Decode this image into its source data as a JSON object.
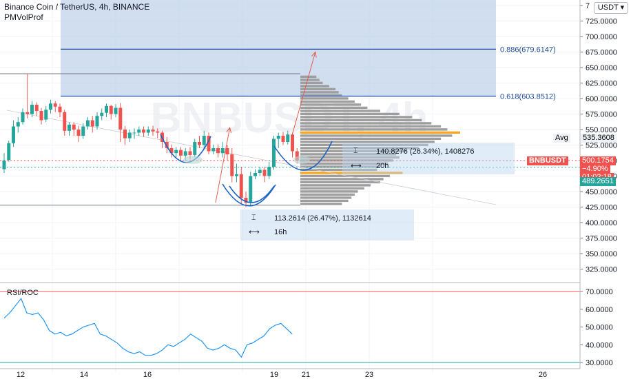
{
  "header": {
    "title": "Binance Coin / TetherUS, 4h, BINANCE",
    "indicator": "PMVolProf",
    "currency": "USDT",
    "watermark": "BNBUSDT, 4h"
  },
  "rsi_panel": {
    "label": "RSI/ROC"
  },
  "measure_boxes": [
    {
      "price_text": "140.8276 (26.34%), 1408276",
      "time_text": "20h"
    },
    {
      "price_text": "113.2614 (26.47%), 1132614",
      "time_text": "16h"
    }
  ],
  "price_tags": {
    "avg_label": "Avg",
    "avg_value": "535.3608",
    "symbol": "BNBUSDT",
    "last_price": "500.1754",
    "change": "−4.90%",
    "countdown": "01:02:18",
    "level": "489.2651"
  },
  "fib_levels": [
    {
      "label": "0.886(679.6147)",
      "value": 679.6147
    },
    {
      "label": "0.618(603.8512)",
      "value": 603.8512
    }
  ],
  "colors": {
    "up": "#26a69a",
    "down": "#ef5350",
    "fib": "#1e4a96",
    "zone": "#bcd0ea",
    "volume": "#9e9e9e",
    "poc": "#f5a623",
    "rsi": "#2196f3",
    "arrow": "#e35c4f",
    "curve": "#1e63c4"
  },
  "chart_data": [
    {
      "type": "candlestick",
      "title": "Binance Coin / TetherUS, 4h, BINANCE",
      "y_ticks": [
        "7",
        "725.0000",
        "700.0000",
        "675.0000",
        "650.0000",
        "625.0000",
        "600.0000",
        "575.0000",
        "550.0000",
        "525.0000",
        "500.0000",
        "475.0000",
        "450.0000",
        "425.0000",
        "400.0000",
        "375.0000",
        "350.0000",
        "325.0000"
      ],
      "x_ticks": [
        "12",
        "14",
        "16",
        "19",
        "21",
        "23",
        "26"
      ],
      "ylim": [
        310,
        750
      ],
      "candles": [
        [
          486,
          500,
          480,
          512
        ],
        [
          501,
          528,
          498,
          532
        ],
        [
          528,
          555,
          522,
          565
        ],
        [
          555,
          562,
          545,
          570
        ],
        [
          562,
          578,
          558,
          584
        ],
        [
          578,
          575,
          568,
          640
        ],
        [
          575,
          590,
          570,
          596
        ],
        [
          590,
          580,
          572,
          594
        ],
        [
          580,
          565,
          558,
          585
        ],
        [
          566,
          582,
          562,
          588
        ],
        [
          582,
          592,
          576,
          598
        ],
        [
          592,
          587,
          578,
          596
        ],
        [
          587,
          578,
          570,
          592
        ],
        [
          578,
          548,
          540,
          582
        ],
        [
          548,
          558,
          540,
          562
        ],
        [
          558,
          550,
          540,
          562
        ],
        [
          550,
          540,
          530,
          556
        ],
        [
          540,
          555,
          535,
          560
        ],
        [
          555,
          565,
          550,
          570
        ],
        [
          565,
          555,
          545,
          572
        ],
        [
          555,
          572,
          550,
          578
        ],
        [
          572,
          577,
          565,
          584
        ],
        [
          577,
          588,
          570,
          592
        ],
        [
          588,
          575,
          566,
          590
        ],
        [
          575,
          585,
          570,
          591
        ],
        [
          585,
          550,
          530,
          593
        ],
        [
          550,
          536,
          525,
          556
        ],
        [
          536,
          545,
          530,
          550
        ],
        [
          545,
          545,
          535,
          552
        ],
        [
          545,
          550,
          540,
          555
        ],
        [
          550,
          545,
          538,
          555
        ],
        [
          545,
          550,
          540,
          555
        ],
        [
          550,
          547,
          540,
          556
        ],
        [
          547,
          545,
          536,
          552
        ],
        [
          545,
          530,
          520,
          548
        ],
        [
          530,
          520,
          512,
          538
        ],
        [
          520,
          512,
          505,
          526
        ],
        [
          512,
          517,
          505,
          522
        ],
        [
          517,
          508,
          500,
          522
        ],
        [
          508,
          515,
          500,
          520
        ],
        [
          515,
          509,
          502,
          522
        ],
        [
          509,
          530,
          505,
          535
        ],
        [
          530,
          525,
          520,
          540
        ],
        [
          525,
          540,
          520,
          548
        ],
        [
          540,
          515,
          510,
          545
        ],
        [
          515,
          520,
          510,
          526
        ],
        [
          520,
          512,
          505,
          526
        ],
        [
          512,
          520,
          505,
          530
        ],
        [
          520,
          510,
          500,
          525
        ],
        [
          510,
          475,
          465,
          520
        ],
        [
          475,
          478,
          465,
          495
        ],
        [
          478,
          440,
          430,
          490
        ],
        [
          440,
          432,
          425,
          450
        ],
        [
          432,
          475,
          428,
          482
        ],
        [
          475,
          480,
          470,
          486
        ],
        [
          480,
          485,
          475,
          490
        ],
        [
          485,
          475,
          465,
          490
        ],
        [
          475,
          490,
          470,
          498
        ],
        [
          490,
          535,
          485,
          540
        ],
        [
          535,
          540,
          520,
          545
        ],
        [
          540,
          530,
          525,
          546
        ],
        [
          530,
          542,
          526,
          548
        ],
        [
          542,
          515,
          505,
          545
        ],
        [
          515,
          500,
          495,
          520
        ]
      ],
      "volume_profile": [
        {
          "price": 635,
          "vol": 0.1
        },
        {
          "price": 630,
          "vol": 0.12
        },
        {
          "price": 625,
          "vol": 0.14
        },
        {
          "price": 620,
          "vol": 0.18
        },
        {
          "price": 615,
          "vol": 0.22
        },
        {
          "price": 610,
          "vol": 0.24
        },
        {
          "price": 605,
          "vol": 0.26
        },
        {
          "price": 600,
          "vol": 0.3
        },
        {
          "price": 595,
          "vol": 0.34
        },
        {
          "price": 590,
          "vol": 0.38
        },
        {
          "price": 585,
          "vol": 0.42
        },
        {
          "price": 580,
          "vol": 0.5
        },
        {
          "price": 575,
          "vol": 0.62
        },
        {
          "price": 570,
          "vol": 0.7
        },
        {
          "price": 565,
          "vol": 0.76
        },
        {
          "price": 560,
          "vol": 0.82
        },
        {
          "price": 555,
          "vol": 0.88
        },
        {
          "price": 550,
          "vol": 0.92
        },
        {
          "price": 545,
          "vol": 1.0,
          "poc": true
        },
        {
          "price": 540,
          "vol": 0.95
        },
        {
          "price": 535,
          "vol": 0.88
        },
        {
          "price": 530,
          "vol": 0.84
        },
        {
          "price": 525,
          "vol": 0.8
        },
        {
          "price": 520,
          "vol": 0.74
        },
        {
          "price": 515,
          "vol": 0.66
        },
        {
          "price": 510,
          "vol": 0.6
        },
        {
          "price": 505,
          "vol": 0.62
        },
        {
          "price": 500,
          "vol": 0.58
        },
        {
          "price": 495,
          "vol": 0.55
        },
        {
          "price": 490,
          "vol": 0.5
        },
        {
          "price": 485,
          "vol": 0.48
        },
        {
          "price": 480,
          "vol": 0.64,
          "poc": true
        },
        {
          "price": 475,
          "vol": 0.56
        },
        {
          "price": 470,
          "vol": 0.52
        },
        {
          "price": 465,
          "vol": 0.5
        },
        {
          "price": 460,
          "vol": 0.44
        },
        {
          "price": 455,
          "vol": 0.4
        },
        {
          "price": 450,
          "vol": 0.36
        },
        {
          "price": 445,
          "vol": 0.34
        },
        {
          "price": 440,
          "vol": 0.32
        },
        {
          "price": 435,
          "vol": 0.3
        },
        {
          "price": 430,
          "vol": 0.26
        }
      ],
      "range_lines": [
        640,
        428
      ],
      "projection_arrows": [
        {
          "from": [
            20.55,
            538
          ],
          "to": [
            21.3,
            675
          ]
        },
        {
          "from": [
            18.15,
            432
          ],
          "to": [
            18.6,
            553
          ]
        }
      ]
    },
    {
      "type": "line",
      "title": "RSI/ROC",
      "y_ticks": [
        "70.0000",
        "60.0000",
        "50.0000",
        "40.0000",
        "30.0000"
      ],
      "ylim": [
        28,
        74
      ],
      "bands": [
        70,
        30
      ],
      "values": [
        55,
        58,
        62,
        66,
        58,
        57,
        58,
        54,
        48,
        46,
        47,
        45,
        46,
        48,
        50,
        51,
        52,
        46,
        45,
        43,
        41,
        38,
        36,
        35,
        36,
        34,
        34,
        35,
        37,
        40,
        39,
        41,
        43,
        46,
        44,
        42,
        38,
        37,
        38,
        40,
        38,
        37,
        33,
        40,
        41,
        43,
        45,
        49,
        51,
        52,
        49,
        46
      ]
    }
  ]
}
